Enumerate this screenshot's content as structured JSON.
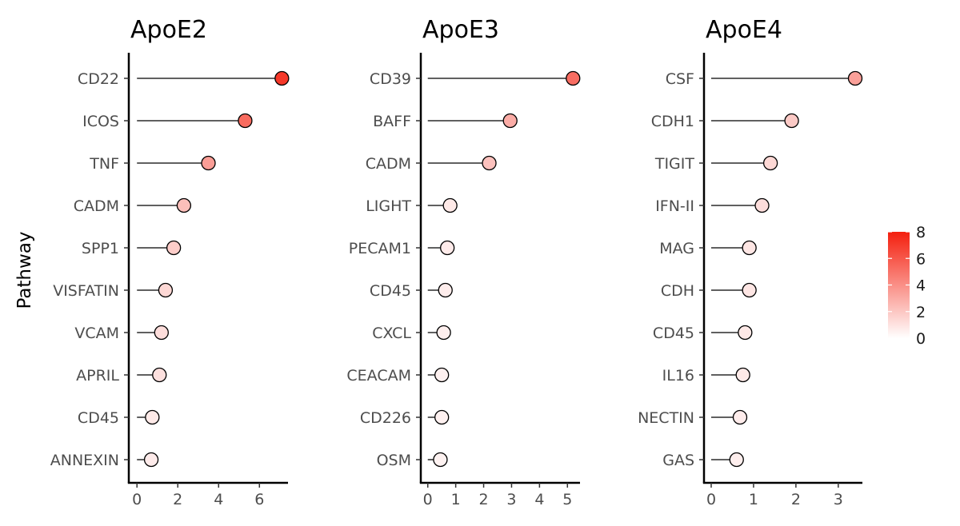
{
  "chart_data": {
    "type": "lollipop",
    "ylabel": "Pathway",
    "legend": {
      "position": "right",
      "ticks": [
        0,
        2,
        4,
        6,
        8
      ],
      "range": [
        0,
        8
      ],
      "low_color": "#ffffff",
      "high_color": "#f41f0e"
    },
    "panels": [
      {
        "title": "ApoE2",
        "xlim": [
          -0.4,
          7.4
        ],
        "xticks": [
          0,
          2,
          4,
          6
        ],
        "categories": [
          "CD22",
          "ICOS",
          "TNF",
          "CADM",
          "SPP1",
          "VISFATIN",
          "VCAM",
          "APRIL",
          "CD45",
          "ANNEXIN"
        ],
        "values": [
          7.1,
          5.3,
          3.5,
          2.3,
          1.8,
          1.4,
          1.2,
          1.1,
          0.75,
          0.7
        ]
      },
      {
        "title": "ApoE3",
        "xlim": [
          -0.25,
          5.45
        ],
        "xticks": [
          0,
          1,
          2,
          3,
          4,
          5
        ],
        "categories": [
          "CD39",
          "BAFF",
          "CADM",
          "LIGHT",
          "PECAM1",
          "CD45",
          "CXCL",
          "CEACAM",
          "CD226",
          "OSM"
        ],
        "values": [
          5.2,
          2.95,
          2.2,
          0.8,
          0.7,
          0.63,
          0.57,
          0.5,
          0.5,
          0.45
        ]
      },
      {
        "title": "ApoE4",
        "xlim": [
          -0.17,
          3.57
        ],
        "xticks": [
          0,
          1,
          2,
          3
        ],
        "categories": [
          "CSF",
          "CDH1",
          "TIGIT",
          "IFN-II",
          "MAG",
          "CDH",
          "CD45",
          "IL16",
          "NECTIN",
          "GAS"
        ],
        "values": [
          3.4,
          1.9,
          1.4,
          1.2,
          0.9,
          0.9,
          0.8,
          0.75,
          0.68,
          0.6
        ]
      }
    ]
  }
}
